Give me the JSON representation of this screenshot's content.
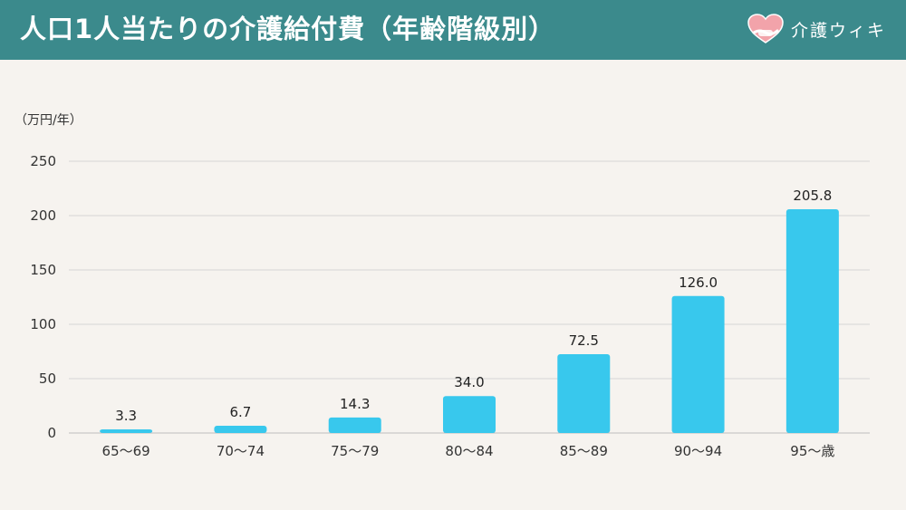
{
  "header": {
    "title": "人口1人当たりの介護給付費（年齢階級別）",
    "brand_name": "介護ウィキ"
  },
  "colors": {
    "header_bg": "#3b8a8c",
    "bar": "#38c8ed",
    "background": "#f6f3ef"
  },
  "chart_data": {
    "type": "bar",
    "title": "人口1人当たりの介護給付費（年齢階級別）",
    "ylabel": "（万円/年）",
    "xlabel": "",
    "categories": [
      "65〜69",
      "70〜74",
      "75〜79",
      "80〜84",
      "85〜89",
      "90〜94",
      "95〜歳"
    ],
    "values": [
      3.3,
      6.7,
      14.3,
      34.0,
      72.5,
      126.0,
      205.8
    ],
    "value_labels": [
      "3.3",
      "6.7",
      "14.3",
      "34.0",
      "72.5",
      "126.0",
      "205.8"
    ],
    "ylim": [
      0,
      250
    ],
    "yticks": [
      0,
      50,
      100,
      150,
      200,
      250
    ],
    "grid": true,
    "legend": "none"
  }
}
